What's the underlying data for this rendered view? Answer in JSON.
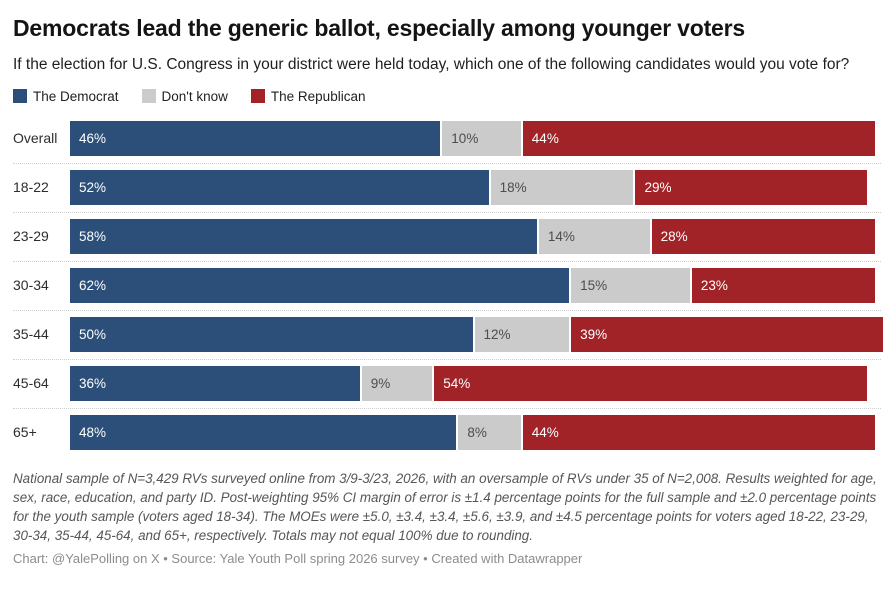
{
  "header": {
    "title": "Democrats lead the generic ballot, especially among younger voters",
    "subtitle": "If the election for U.S. Congress in your district were held today, which one of the following candidates would you vote for?"
  },
  "chart_data": {
    "type": "bar",
    "variant": "stacked-horizontal",
    "unit": "%",
    "xlim": [
      0,
      100
    ],
    "grid": false,
    "legend_position": "top",
    "categories": [
      "Overall",
      "18-22",
      "23-29",
      "30-34",
      "35-44",
      "45-64",
      "65+"
    ],
    "series": [
      {
        "name": "The Democrat",
        "color": "#2b4f78",
        "label_color": "#ffffff",
        "values": [
          46,
          52,
          58,
          62,
          50,
          36,
          48
        ]
      },
      {
        "name": "Don't know",
        "color": "#cbcbcb",
        "label_color": "#4d4d4d",
        "values": [
          10,
          18,
          14,
          15,
          12,
          9,
          8
        ]
      },
      {
        "name": "The Republican",
        "color": "#a12227",
        "label_color": "#ffffff",
        "values": [
          44,
          29,
          28,
          23,
          39,
          54,
          44
        ]
      }
    ]
  },
  "footer": {
    "note": "National sample of N=3,429 RVs surveyed online from 3/9-3/23, 2026, with an oversample of RVs under 35 of N=2,008. Results weighted for age, sex, race, education, and party ID. Post-weighting 95% CI margin of error is ±1.4 percentage points for the full sample and ±2.0 percentage points for the youth sample (voters aged 18-34). The MOEs were ±5.0, ±3.4, ±3.4, ±5.6, ±3.9, and ±4.5 percentage points for voters aged 18-22, 23-29, 30-34, 35-44, 45-64, and 65+, respectively. Totals may not equal 100% due to rounding.",
    "caption": "Chart: @YalePolling on X • Source: Yale Youth Poll spring 2026 survey • Created with Datawrapper"
  }
}
